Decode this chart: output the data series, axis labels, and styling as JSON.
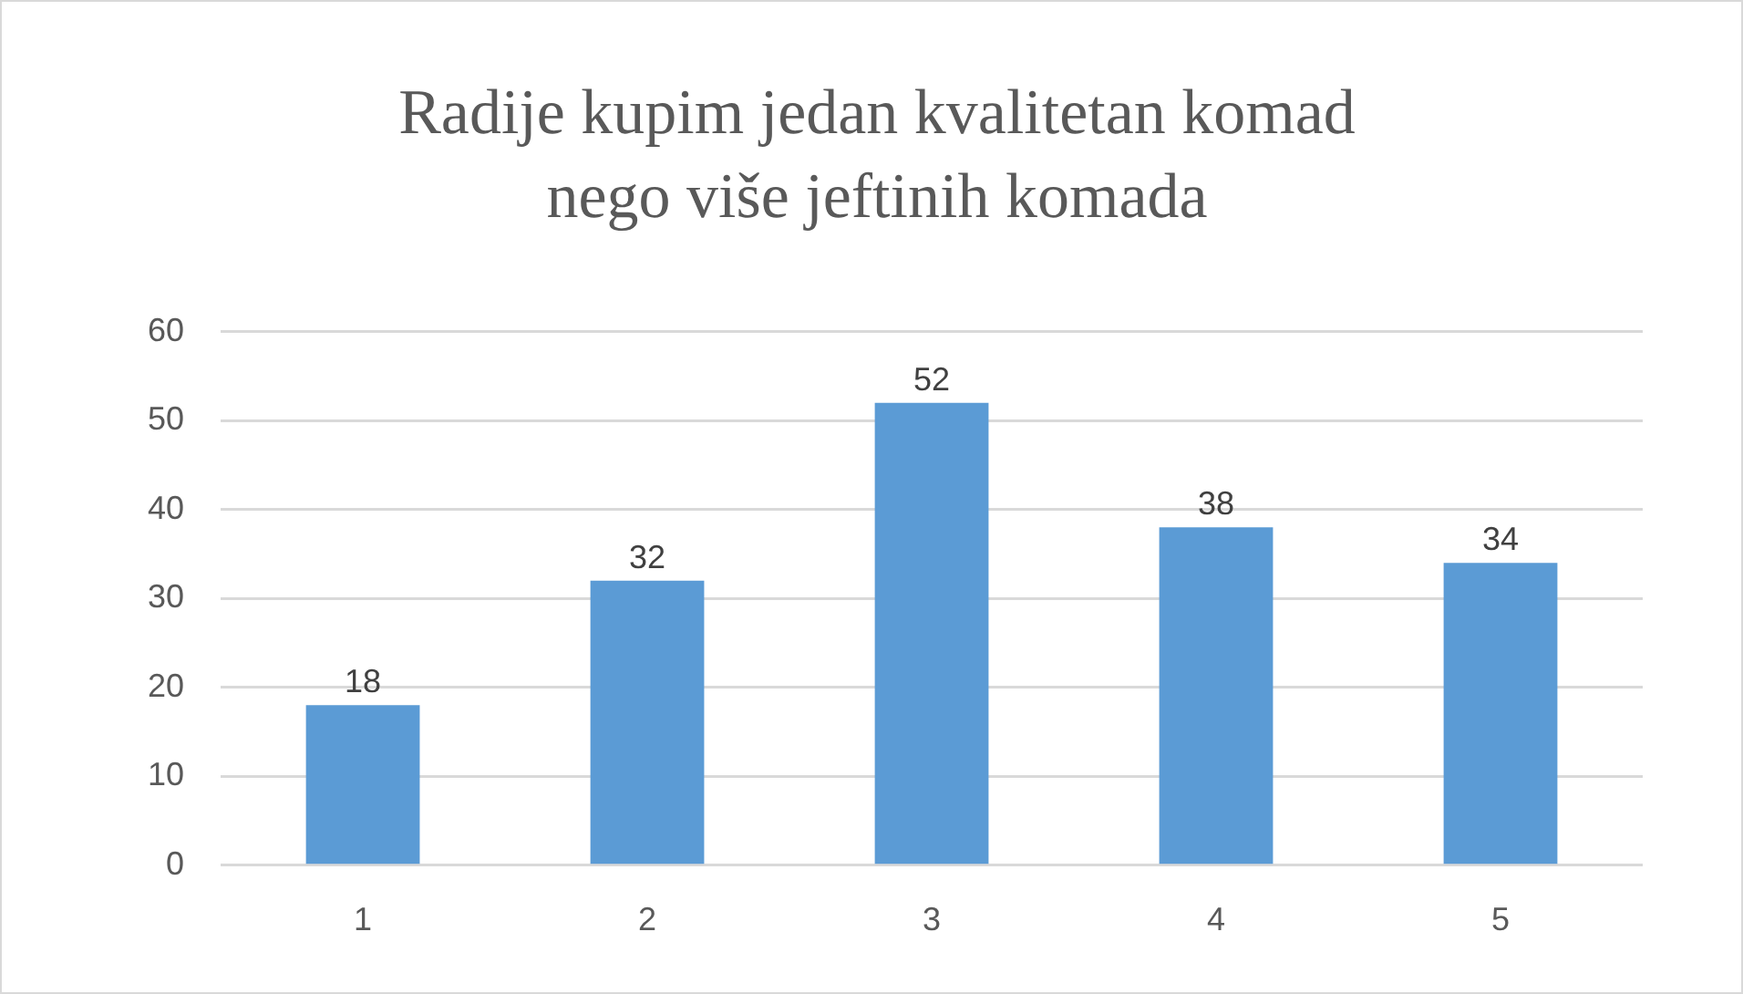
{
  "chart_data": {
    "type": "bar",
    "title": "Radije kupim jedan kvalitetan komad nego više jeftinih komada",
    "categories": [
      "1",
      "2",
      "3",
      "4",
      "5"
    ],
    "values": [
      18,
      32,
      52,
      38,
      34
    ],
    "color": "#5b9bd5",
    "ylim": [
      0,
      60
    ],
    "yticks": [
      0,
      10,
      20,
      30,
      40,
      50,
      60
    ],
    "grid": "y",
    "data_labels": true,
    "legend": false
  }
}
